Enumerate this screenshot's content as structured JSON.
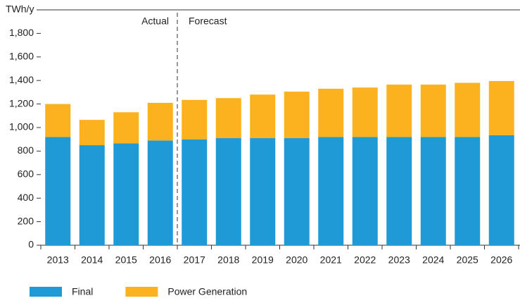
{
  "chart_data": {
    "type": "stacked_bar",
    "annotations": [
      "Actual",
      "Forecast"
    ],
    "categories": [
      "2013",
      "2014",
      "2015",
      "2016",
      "2017",
      "2018",
      "2019",
      "2020",
      "2021",
      "2022",
      "2023",
      "2024",
      "2025",
      "2026"
    ],
    "series": [
      {
        "name": "Final",
        "color": "#1f9ad6",
        "values": [
          920,
          850,
          865,
          890,
          900,
          910,
          910,
          910,
          920,
          920,
          920,
          920,
          920,
          935
        ]
      },
      {
        "name": "Power Generation",
        "color": "#fbb21e",
        "values": [
          280,
          215,
          265,
          320,
          335,
          340,
          370,
          395,
          410,
          420,
          445,
          445,
          460,
          460
        ]
      }
    ],
    "ylim": [
      0,
      2000
    ],
    "yticks": [
      0,
      200,
      400,
      600,
      800,
      {
        "value": 1000,
        "label": "1,000"
      },
      {
        "value": 1200,
        "label": "1,200"
      },
      {
        "value": 1400,
        "label": "1,400"
      },
      {
        "value": 1600,
        "label": "1,600"
      },
      {
        "value": 1800,
        "label": "1,800"
      },
      {
        "value": 2000,
        "label": "TWh/y"
      }
    ],
    "grid": false,
    "legend": "bottom-left"
  }
}
